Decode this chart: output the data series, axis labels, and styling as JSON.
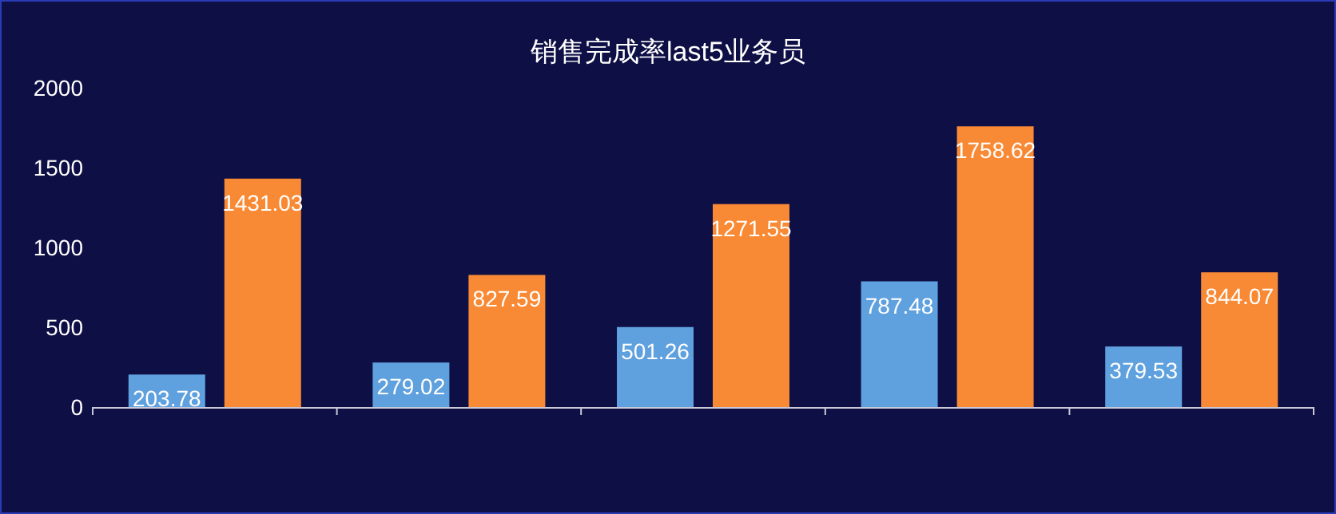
{
  "chart_data": {
    "type": "bar",
    "title": "销售完成率last5业务员",
    "categories": [
      null,
      null,
      null,
      null,
      null
    ],
    "series": [
      {
        "color": "#5fa0de",
        "values": [
          203.78,
          279.02,
          501.26,
          787.48,
          379.53
        ]
      },
      {
        "color": "#f98a35",
        "values": [
          1431.03,
          827.59,
          1271.55,
          1758.62,
          844.07
        ]
      }
    ],
    "ylim": [
      0,
      2000
    ],
    "yticks": [
      0,
      500,
      1000,
      1500,
      2000
    ],
    "grid": false,
    "data_labels": true
  }
}
